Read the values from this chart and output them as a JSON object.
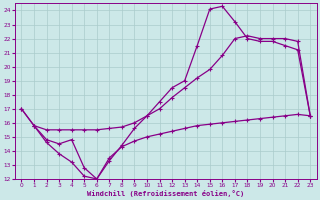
{
  "xlabel": "Windchill (Refroidissement éolien,°C)",
  "bg_color": "#cce8e8",
  "grid_color": "#aacccc",
  "line_color": "#880088",
  "xlim": [
    -0.5,
    23.5
  ],
  "ylim": [
    12,
    24.5
  ],
  "xticks": [
    0,
    1,
    2,
    3,
    4,
    5,
    6,
    7,
    8,
    9,
    10,
    11,
    12,
    13,
    14,
    15,
    16,
    17,
    18,
    19,
    20,
    21,
    22,
    23
  ],
  "yticks": [
    12,
    13,
    14,
    15,
    16,
    17,
    18,
    19,
    20,
    21,
    22,
    23,
    24
  ],
  "curve1_x": [
    0,
    1,
    2,
    3,
    4,
    5,
    6,
    7,
    8,
    9,
    10,
    11,
    12,
    13,
    14,
    15,
    16,
    17,
    18,
    19,
    20,
    21,
    22,
    23
  ],
  "curve1_y": [
    17.0,
    15.8,
    14.6,
    13.8,
    13.2,
    12.2,
    12.0,
    13.3,
    14.4,
    15.6,
    16.5,
    17.5,
    18.5,
    19.0,
    21.5,
    24.1,
    24.3,
    23.2,
    22.0,
    21.8,
    21.8,
    21.5,
    21.2,
    16.5
  ],
  "curve2_x": [
    0,
    1,
    2,
    3,
    4,
    5,
    6,
    7,
    8,
    9,
    10,
    11,
    12,
    13,
    14,
    15,
    16,
    17,
    18,
    19,
    20,
    21,
    22,
    23
  ],
  "curve2_y": [
    17.0,
    15.8,
    15.5,
    15.5,
    15.5,
    15.5,
    15.5,
    15.6,
    15.7,
    16.0,
    16.5,
    17.0,
    17.8,
    18.5,
    19.2,
    19.8,
    20.8,
    22.0,
    22.2,
    22.0,
    22.0,
    22.0,
    21.8,
    16.5
  ],
  "curve3_x": [
    1,
    2,
    3,
    4,
    5,
    6,
    7,
    8,
    9,
    10,
    11,
    12,
    13,
    14,
    15,
    16,
    17,
    18,
    19,
    20,
    21,
    22,
    23
  ],
  "curve3_y": [
    15.8,
    14.8,
    14.5,
    14.8,
    12.8,
    12.0,
    13.5,
    14.3,
    14.7,
    15.0,
    15.2,
    15.4,
    15.6,
    15.8,
    15.9,
    16.0,
    16.1,
    16.2,
    16.3,
    16.4,
    16.5,
    16.6,
    16.5
  ]
}
